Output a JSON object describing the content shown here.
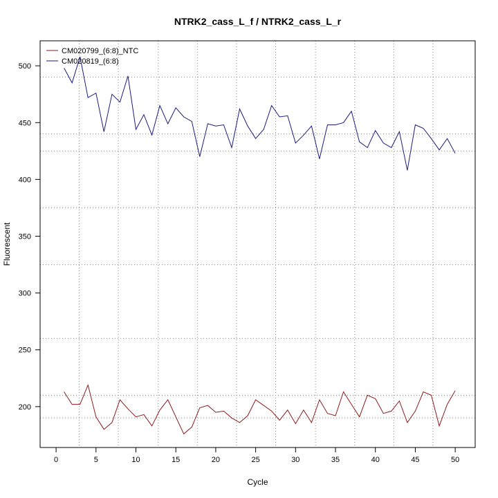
{
  "chart_data": {
    "type": "line",
    "title": "NTRK2_cass_L_f / NTRK2_cass_L_r",
    "xlabel": "Cycle",
    "ylabel": "Fluorescent",
    "xlim": [
      -2,
      52.5
    ],
    "ylim": [
      164,
      522
    ],
    "x_ticks": [
      0,
      5,
      10,
      15,
      20,
      25,
      30,
      35,
      40,
      45,
      50
    ],
    "y_ticks": [
      200,
      250,
      300,
      350,
      400,
      450,
      500
    ],
    "grid": {
      "vertical": [
        2.9,
        7.8,
        12.8,
        17.7,
        22.6,
        27.5,
        32.5,
        37.4,
        42.3,
        47.2
      ],
      "horizontal": [
        190,
        210,
        260,
        325,
        375,
        425,
        440,
        490
      ]
    },
    "legend": {
      "position": "top-left"
    },
    "colors": {
      "ntc": "#8b1a1a",
      "sample": "#1a1a80",
      "grid": "#888888"
    },
    "x": [
      1,
      2,
      3,
      4,
      5,
      6,
      7,
      8,
      9,
      10,
      11,
      12,
      13,
      14,
      15,
      16,
      17,
      18,
      19,
      20,
      21,
      22,
      23,
      24,
      25,
      26,
      27,
      28,
      29,
      30,
      31,
      32,
      33,
      34,
      35,
      36,
      37,
      38,
      39,
      40,
      41,
      42,
      43,
      44,
      45,
      46,
      47,
      48,
      49,
      50
    ],
    "series": [
      {
        "name": "CM020799_(6:8)_NTC",
        "color": "#8b1a1a",
        "values": [
          213,
          202,
          202,
          219,
          191,
          180,
          186,
          206,
          198,
          191,
          193,
          183,
          197,
          206,
          191,
          176,
          182,
          199,
          201,
          195,
          196,
          190,
          186,
          192,
          206,
          201,
          196,
          188,
          197,
          185,
          197,
          186,
          206,
          194,
          192,
          213,
          202,
          191,
          210,
          207,
          194,
          196,
          205,
          186,
          196,
          213,
          210,
          183,
          202,
          214
        ]
      },
      {
        "name": "CM020819_(6:8)",
        "color": "#1a1a80",
        "values": [
          498,
          485,
          508,
          472,
          476,
          442,
          475,
          468,
          491,
          444,
          457,
          439,
          465,
          449,
          463,
          455,
          451,
          420,
          449,
          447,
          448,
          428,
          462,
          447,
          436,
          444,
          465,
          455,
          456,
          432,
          439,
          447,
          418,
          448,
          448,
          450,
          460,
          433,
          428,
          443,
          432,
          428,
          442,
          408,
          448,
          445,
          436,
          426,
          436,
          423
        ]
      }
    ]
  }
}
